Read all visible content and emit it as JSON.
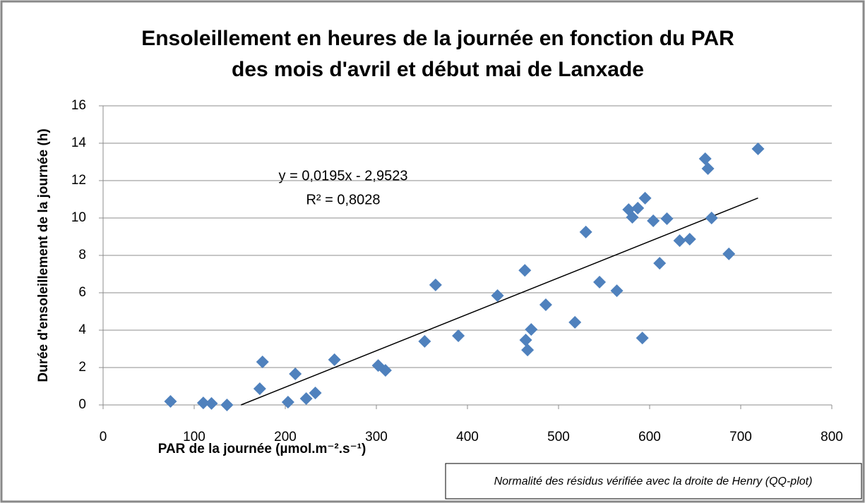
{
  "chart_data": {
    "type": "scatter",
    "title": [
      "Ensoleillement en heures de la journée en fonction du PAR",
      "des mois d'avril et début mai de Lanxade"
    ],
    "xlabel": "PAR  de la journée (µmol.m⁻².s⁻¹)",
    "ylabel": "Durée d'ensoleillement de la journée (h)",
    "note": "Normalité des résidus vérifiée avec la droite de Henry (QQ-plot)",
    "equation": "y = 0,0195x - 2,9523",
    "r2": "R² = 0,8028",
    "trendline": {
      "slope": 0.0195,
      "intercept": -2.9523
    },
    "color": "#4f81bd",
    "grid": true,
    "xlim": [
      0,
      800
    ],
    "xticks": [
      0,
      100,
      200,
      300,
      400,
      500,
      600,
      700,
      800
    ],
    "ylim": [
      0,
      16
    ],
    "yticks": [
      0,
      2,
      4,
      6,
      8,
      10,
      12,
      14,
      16
    ],
    "x": [
      74,
      110,
      119,
      136,
      172,
      175,
      203,
      211,
      223,
      233,
      254,
      302,
      310,
      353,
      365,
      390,
      433,
      463,
      464,
      466,
      470,
      486,
      518,
      530,
      545,
      564,
      577,
      581,
      587,
      592,
      595,
      604,
      611,
      619,
      633,
      644,
      661,
      664,
      668,
      687,
      719
    ],
    "values": [
      0.19,
      0.11,
      0.08,
      0.0,
      0.87,
      2.3,
      0.15,
      1.66,
      0.34,
      0.64,
      2.42,
      2.11,
      1.85,
      3.4,
      6.42,
      3.7,
      5.85,
      7.2,
      3.47,
      2.94,
      4.04,
      5.36,
      4.42,
      9.25,
      6.57,
      6.11,
      10.45,
      10.04,
      10.53,
      3.58,
      11.06,
      9.85,
      7.58,
      9.96,
      8.79,
      8.87,
      13.17,
      12.64,
      10.0,
      8.08,
      13.7
    ]
  }
}
